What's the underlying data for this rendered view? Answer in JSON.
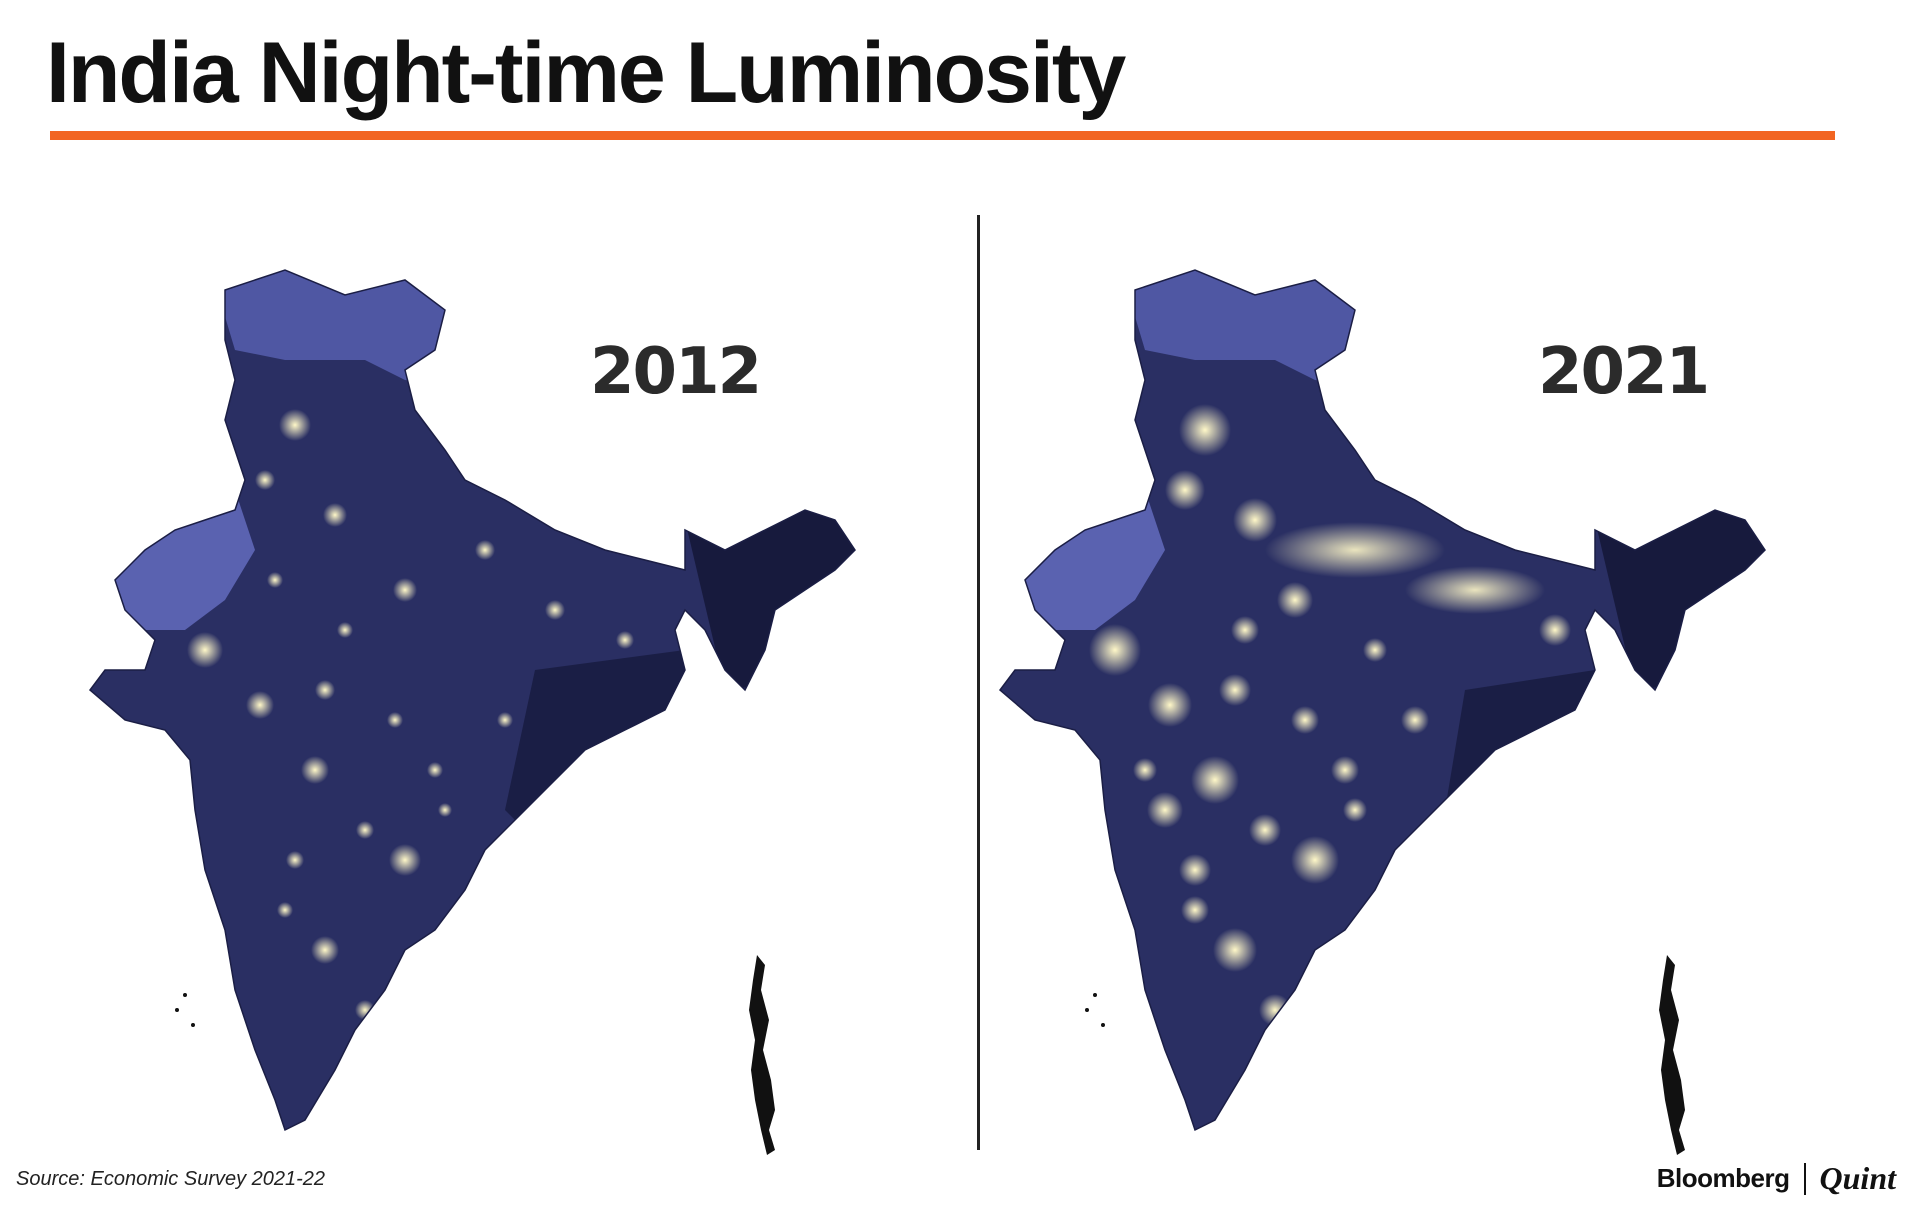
{
  "header": {
    "title": "India Night-time Luminosity",
    "accent_color": "#f26522"
  },
  "maps": [
    {
      "year": "2012",
      "brightness": "lower"
    },
    {
      "year": "2021",
      "brightness": "higher"
    }
  ],
  "palette": {
    "land": "#2a2f63",
    "land_dark": "#171a3d",
    "mountain": "#4f57a3",
    "desert": "#5a62b0",
    "light": "#fff8c8"
  },
  "footer": {
    "source": "Source: Economic Survey 2021-22",
    "brand_primary": "Bloomberg",
    "brand_secondary": "Quint"
  }
}
